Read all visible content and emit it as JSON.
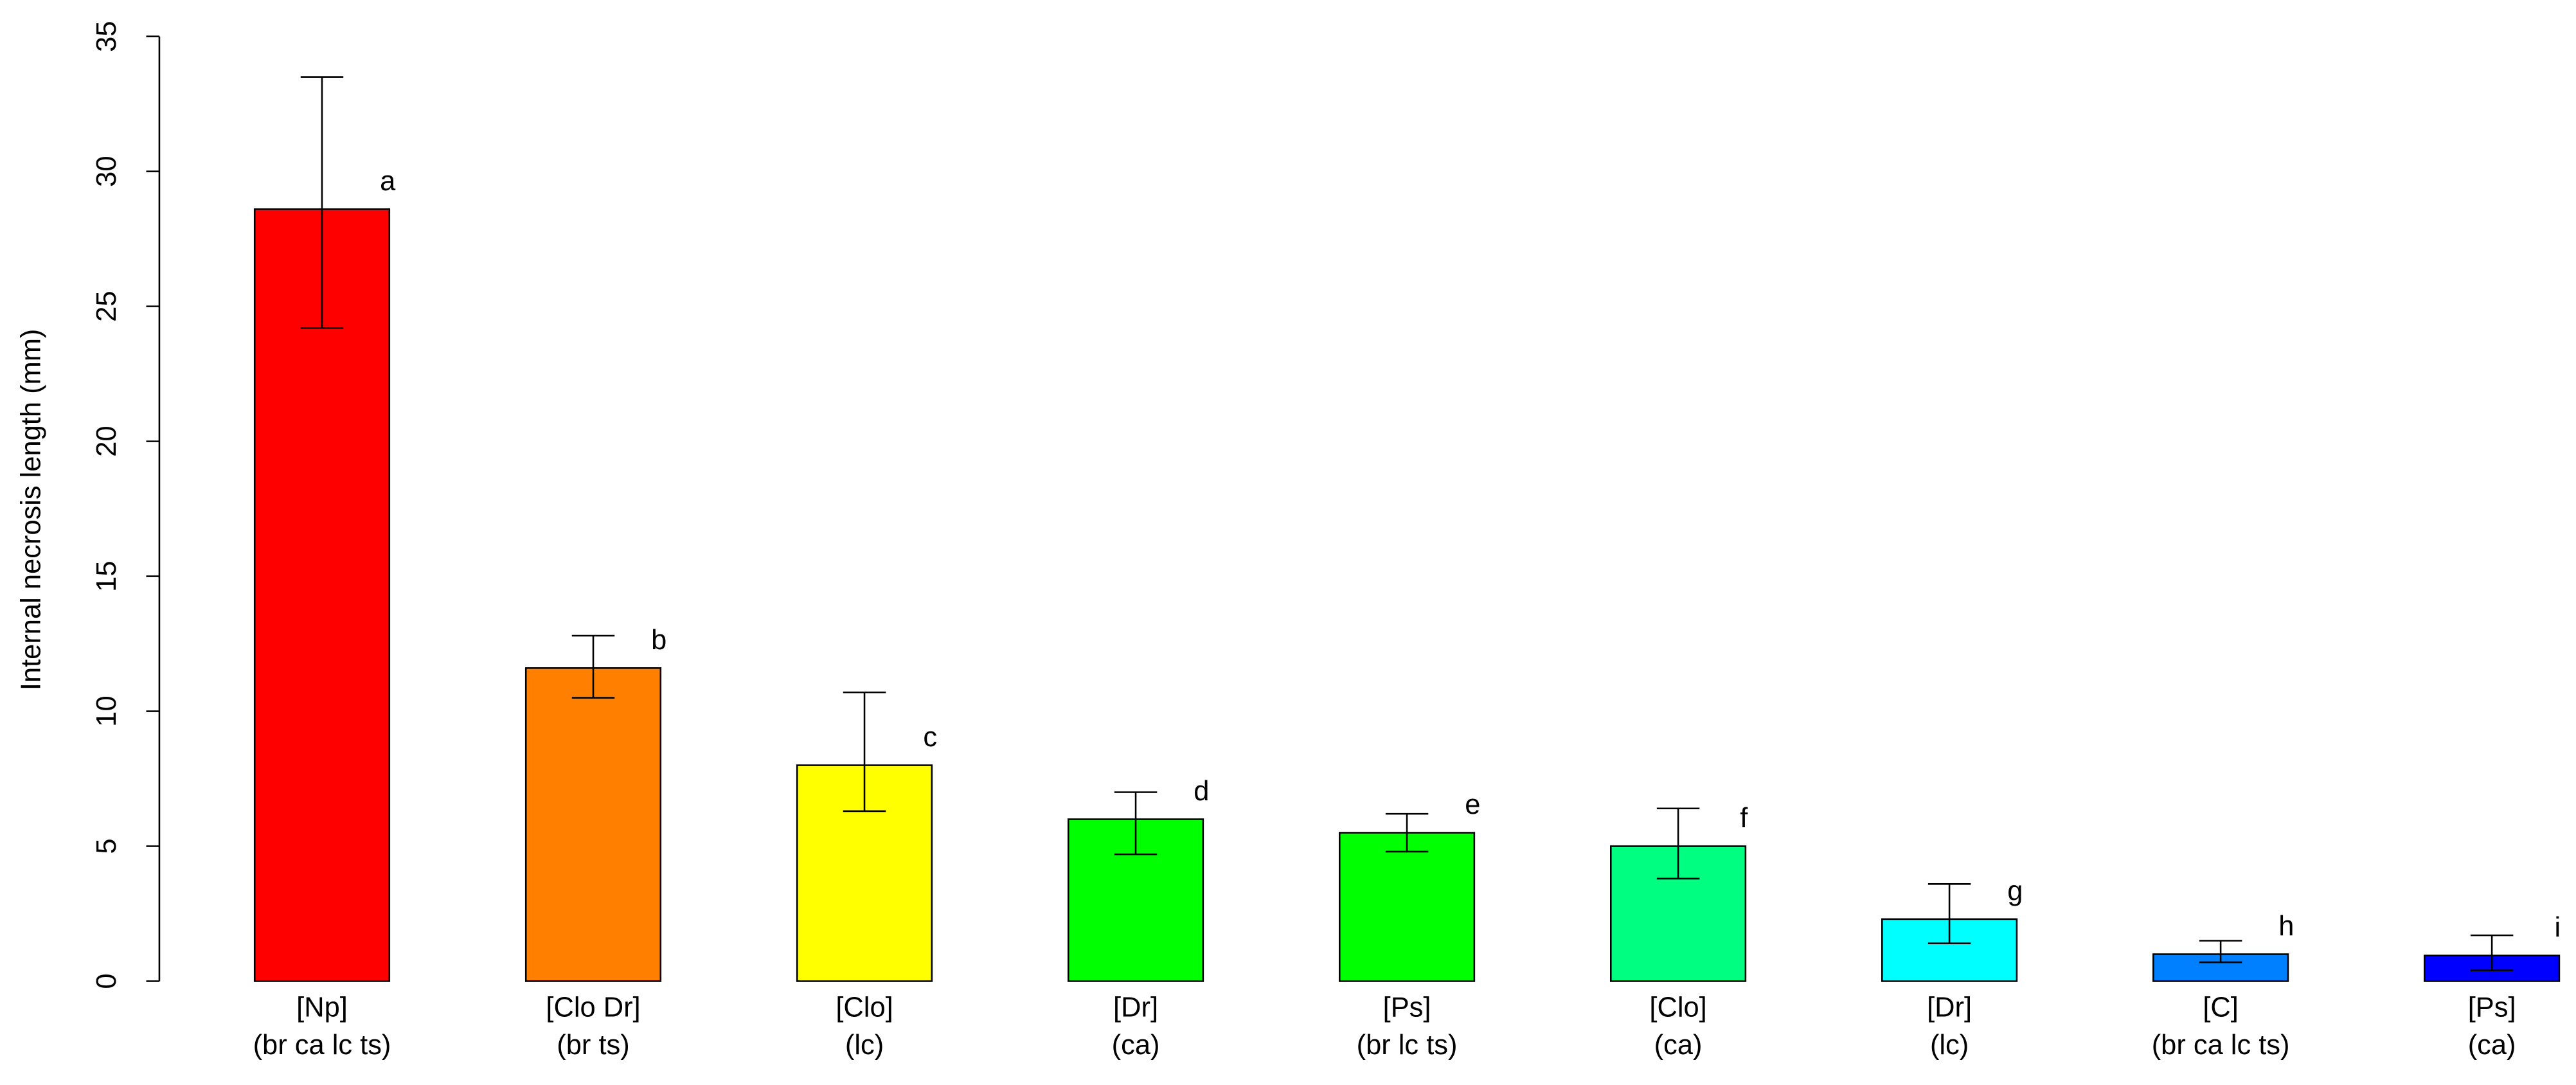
{
  "chart_data": {
    "type": "bar",
    "y_label": "Internal necrosis length (mm)",
    "categories": [
      [
        "[Np]",
        "(br ca lc ts)"
      ],
      [
        "[Clo Dr]",
        "(br ts)"
      ],
      [
        "[Clo]",
        "(lc)"
      ],
      [
        "[Dr]",
        "(ca)"
      ],
      [
        "[Ps]",
        "(br lc ts)"
      ],
      [
        "[Clo]",
        "(ca)"
      ],
      [
        "[Dr]",
        "(lc)"
      ],
      [
        "[C]",
        "(br ca lc ts)"
      ],
      [
        "[Ps]",
        "(ca)"
      ]
    ],
    "values": [
      28.6,
      11.6,
      8.0,
      6.0,
      5.5,
      5.0,
      2.3,
      1.0,
      0.95
    ],
    "error_lower": [
      24.2,
      10.5,
      6.3,
      4.7,
      4.8,
      3.8,
      1.4,
      0.7,
      0.4
    ],
    "error_upper": [
      33.5,
      12.8,
      10.7,
      7.0,
      6.2,
      6.4,
      3.6,
      1.5,
      1.7
    ],
    "annotations": [
      "a",
      "b",
      "c",
      "d",
      "e",
      "f",
      "g",
      "h",
      "i"
    ],
    "colors": [
      "#FF0000",
      "#FF8000",
      "#FFFF00",
      "#00FF00",
      "#00FF00",
      "#00FF80",
      "#00FFFF",
      "#0080FF",
      "#0000FF"
    ],
    "ylim": [
      0,
      35
    ],
    "yticks": [
      0,
      5,
      10,
      15,
      20,
      25,
      30,
      35
    ]
  }
}
